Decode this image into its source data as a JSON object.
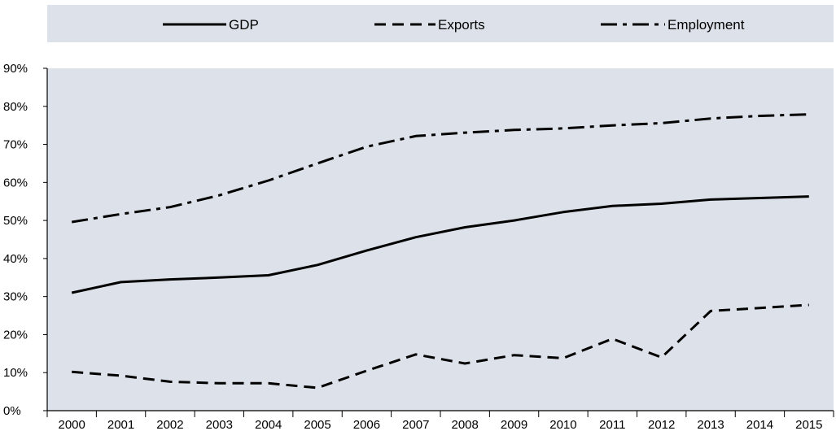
{
  "chart_data": {
    "type": "line",
    "title": "",
    "xlabel": "",
    "ylabel": "",
    "x": [
      "2000",
      "2001",
      "2002",
      "2003",
      "2004",
      "2005",
      "2006",
      "2007",
      "2008",
      "2009",
      "2010",
      "2011",
      "2012",
      "2013",
      "2014",
      "2015"
    ],
    "ylim": [
      0,
      90
    ],
    "yticks": [
      0,
      10,
      20,
      30,
      40,
      50,
      60,
      70,
      80,
      90
    ],
    "ytick_labels": [
      "0%",
      "10%",
      "20%",
      "30%",
      "40%",
      "50%",
      "60%",
      "70%",
      "80%",
      "90%"
    ],
    "grid": false,
    "legend_position": "top",
    "series": [
      {
        "name": "GDP",
        "dash": "solid",
        "values": [
          31.0,
          33.8,
          34.5,
          35.0,
          35.6,
          38.3,
          42.1,
          45.6,
          48.2,
          50.0,
          52.2,
          53.8,
          54.4,
          55.5,
          55.9,
          56.3
        ]
      },
      {
        "name": "Exports",
        "dash": "dashed",
        "values": [
          10.2,
          9.2,
          7.6,
          7.2,
          7.2,
          6.0,
          10.5,
          14.8,
          12.4,
          14.6,
          13.8,
          18.9,
          14.0,
          26.2,
          27.0,
          27.8
        ]
      },
      {
        "name": "Employment",
        "dash": "dashdot",
        "values": [
          49.6,
          51.7,
          53.5,
          56.6,
          60.5,
          65.0,
          69.4,
          72.2,
          73.1,
          73.8,
          74.2,
          75.0,
          75.6,
          76.8,
          77.5,
          77.9
        ]
      }
    ],
    "colors": {
      "line": "#000000",
      "plot_background": "#dde2ea",
      "legend_background": "#dde2ea",
      "axis": "#000000"
    }
  }
}
